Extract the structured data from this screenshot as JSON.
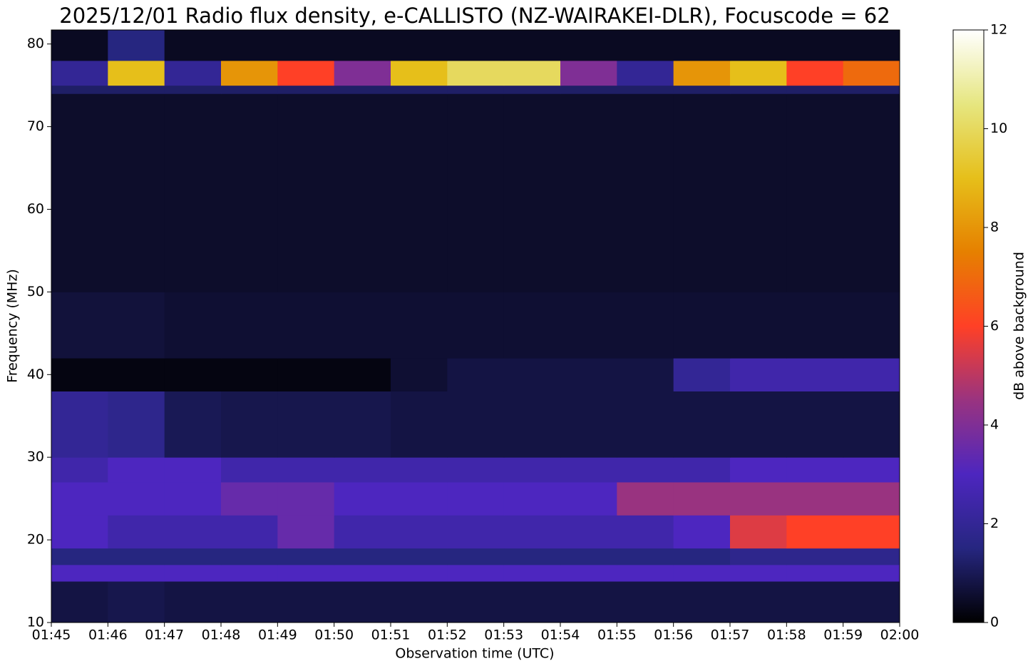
{
  "chart_data": {
    "type": "heatmap",
    "title": "2025/12/01 Radio flux density, e-CALLISTO (NZ-WAIRAKEI-DLR), Focuscode = 62",
    "x_label": "Observation time (UTC)",
    "y_label": "Frequency (MHz)",
    "colormap": "CMRmap",
    "xlim": [
      0,
      15
    ],
    "xticks": [
      {
        "value": 0,
        "label": "01:45"
      },
      {
        "value": 1,
        "label": "01:46"
      },
      {
        "value": 2,
        "label": "01:47"
      },
      {
        "value": 3,
        "label": "01:48"
      },
      {
        "value": 4,
        "label": "01:49"
      },
      {
        "value": 5,
        "label": "01:50"
      },
      {
        "value": 6,
        "label": "01:51"
      },
      {
        "value": 7,
        "label": "01:52"
      },
      {
        "value": 8,
        "label": "01:53"
      },
      {
        "value": 9,
        "label": "01:54"
      },
      {
        "value": 10,
        "label": "01:55"
      },
      {
        "value": 11,
        "label": "01:56"
      },
      {
        "value": 12,
        "label": "01:57"
      },
      {
        "value": 13,
        "label": "01:58"
      },
      {
        "value": 14,
        "label": "01:59"
      },
      {
        "value": 15,
        "label": "02:00"
      }
    ],
    "ylim": [
      10,
      81.7
    ],
    "yticks": [
      10,
      20,
      30,
      40,
      50,
      60,
      70,
      80
    ],
    "x_bins": [
      0,
      1,
      2,
      3,
      4,
      5,
      6,
      7,
      8,
      9,
      10,
      11,
      12,
      13,
      14,
      15
    ],
    "y_bins": [
      10,
      15,
      17,
      19,
      23,
      27,
      30,
      38,
      42,
      50,
      60,
      74,
      75,
      78,
      81.7
    ],
    "z": [
      [
        0.8,
        0.9,
        0.8,
        0.8,
        0.8,
        0.8,
        0.8,
        0.8,
        0.8,
        0.8,
        0.8,
        0.8,
        0.8,
        0.8,
        0.8
      ],
      [
        3,
        3,
        3,
        3,
        3,
        3,
        3,
        3,
        3,
        3,
        3,
        3,
        3,
        3,
        3
      ],
      [
        1.5,
        1.5,
        1.5,
        1.5,
        1.5,
        1.5,
        1.5,
        1.5,
        1.5,
        1.5,
        1.5,
        1.5,
        1.8,
        1.8,
        1.8
      ],
      [
        3,
        2.5,
        2.5,
        2.5,
        3.5,
        2.5,
        2.5,
        2.5,
        2.5,
        2.5,
        2.5,
        3,
        5.5,
        6,
        6
      ],
      [
        3,
        3,
        3,
        3.5,
        3.5,
        3,
        3,
        3,
        3,
        3,
        4.5,
        4.5,
        4.5,
        4.5,
        4.5
      ],
      [
        2.5,
        3,
        3,
        2.5,
        2.5,
        2.5,
        2.5,
        2.5,
        2.5,
        2.5,
        2.5,
        2.5,
        3,
        3,
        3
      ],
      [
        2,
        1.8,
        1,
        0.9,
        0.9,
        0.9,
        0.8,
        0.8,
        0.8,
        0.8,
        0.8,
        0.8,
        0.8,
        0.8,
        0.8
      ],
      [
        0.2,
        0.2,
        0.2,
        0.2,
        0.2,
        0.2,
        0.6,
        0.8,
        0.8,
        0.8,
        0.8,
        2,
        2.5,
        2.5,
        2.5
      ],
      [
        0.7,
        0.7,
        0.6,
        0.6,
        0.6,
        0.6,
        0.6,
        0.6,
        0.6,
        0.6,
        0.6,
        0.6,
        0.6,
        0.6,
        0.6
      ],
      [
        0.5,
        0.5,
        0.5,
        0.5,
        0.5,
        0.5,
        0.5,
        0.5,
        0.5,
        0.5,
        0.5,
        0.5,
        0.5,
        0.5,
        0.5
      ],
      [
        0.5,
        0.5,
        0.5,
        0.5,
        0.5,
        0.5,
        0.5,
        0.5,
        0.5,
        0.5,
        0.5,
        0.5,
        0.5,
        0.5,
        0.5
      ],
      [
        1.2,
        1.2,
        1.2,
        1.2,
        1.2,
        1.2,
        1.2,
        1.2,
        1.2,
        1.2,
        1.2,
        1.2,
        1.2,
        1.2,
        1.2
      ],
      [
        2,
        9,
        2,
        8,
        6,
        4,
        9,
        10,
        10,
        4,
        2,
        8,
        9,
        6,
        7
      ],
      [
        0.4,
        1.5,
        0.4,
        0.4,
        0.4,
        0.4,
        0.4,
        0.4,
        0.4,
        0.4,
        0.4,
        0.4,
        0.4,
        0.4,
        0.4
      ]
    ],
    "colorbar": {
      "label": "dB above background",
      "lim": [
        0,
        12
      ],
      "ticks": [
        0,
        2,
        4,
        6,
        8,
        10,
        12
      ]
    }
  }
}
